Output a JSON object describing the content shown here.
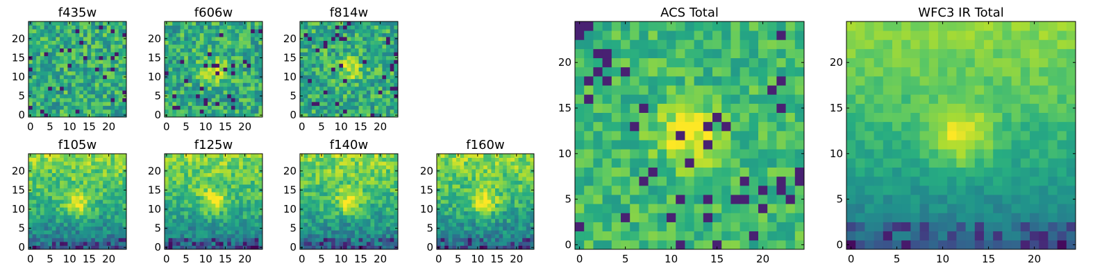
{
  "chart_data": [
    {
      "type": "heatmap",
      "title": "f435w",
      "colormap": "viridis",
      "xlim": [
        0,
        24
      ],
      "ylim": [
        0,
        24
      ],
      "xticks": [
        0,
        5,
        10,
        15,
        20
      ],
      "yticks": [
        0,
        5,
        10,
        15,
        20
      ],
      "xlabel": "",
      "ylabel": "",
      "grid": false
    },
    {
      "type": "heatmap",
      "title": "f606w",
      "colormap": "viridis",
      "xlim": [
        0,
        24
      ],
      "ylim": [
        0,
        24
      ],
      "xticks": [
        0,
        5,
        10,
        15,
        20
      ],
      "yticks": [
        0,
        5,
        10,
        15,
        20
      ],
      "xlabel": "",
      "ylabel": "",
      "grid": false
    },
    {
      "type": "heatmap",
      "title": "f814w",
      "colormap": "viridis",
      "xlim": [
        0,
        24
      ],
      "ylim": [
        0,
        24
      ],
      "xticks": [
        0,
        5,
        10,
        15,
        20
      ],
      "yticks": [
        0,
        5,
        10,
        15,
        20
      ],
      "xlabel": "",
      "ylabel": "",
      "grid": false
    },
    {
      "type": "heatmap",
      "title": "f105w",
      "colormap": "viridis",
      "xlim": [
        0,
        24
      ],
      "ylim": [
        0,
        24
      ],
      "xticks": [
        0,
        5,
        10,
        15,
        20
      ],
      "yticks": [
        0,
        5,
        10,
        15,
        20
      ],
      "xlabel": "",
      "ylabel": "",
      "grid": false
    },
    {
      "type": "heatmap",
      "title": "f125w",
      "colormap": "viridis",
      "xlim": [
        0,
        24
      ],
      "ylim": [
        0,
        24
      ],
      "xticks": [
        0,
        5,
        10,
        15,
        20
      ],
      "yticks": [
        0,
        5,
        10,
        15,
        20
      ],
      "xlabel": "",
      "ylabel": "",
      "grid": false
    },
    {
      "type": "heatmap",
      "title": "f140w",
      "colormap": "viridis",
      "xlim": [
        0,
        24
      ],
      "ylim": [
        0,
        24
      ],
      "xticks": [
        0,
        5,
        10,
        15,
        20
      ],
      "yticks": [
        0,
        5,
        10,
        15,
        20
      ],
      "xlabel": "",
      "ylabel": "",
      "grid": false
    },
    {
      "type": "heatmap",
      "title": "f160w",
      "colormap": "viridis",
      "xlim": [
        0,
        24
      ],
      "ylim": [
        0,
        24
      ],
      "xticks": [
        0,
        5,
        10,
        15,
        20
      ],
      "yticks": [
        0,
        5,
        10,
        15,
        20
      ],
      "xlabel": "",
      "ylabel": "",
      "grid": false
    },
    {
      "type": "heatmap",
      "title": "ACS Total",
      "colormap": "viridis",
      "xlim": [
        0,
        24
      ],
      "ylim": [
        0,
        24
      ],
      "xticks": [
        0,
        5,
        10,
        15,
        20
      ],
      "yticks": [
        0,
        5,
        10,
        15,
        20
      ],
      "xlabel": "",
      "ylabel": "",
      "grid": false
    },
    {
      "type": "heatmap",
      "title": "WFC3 IR Total",
      "colormap": "viridis",
      "xlim": [
        0,
        24
      ],
      "ylim": [
        0,
        24
      ],
      "xticks": [
        0,
        5,
        10,
        15,
        20
      ],
      "yticks": [
        0,
        5,
        10,
        15,
        20
      ],
      "xlabel": "",
      "ylabel": "",
      "grid": false
    }
  ]
}
